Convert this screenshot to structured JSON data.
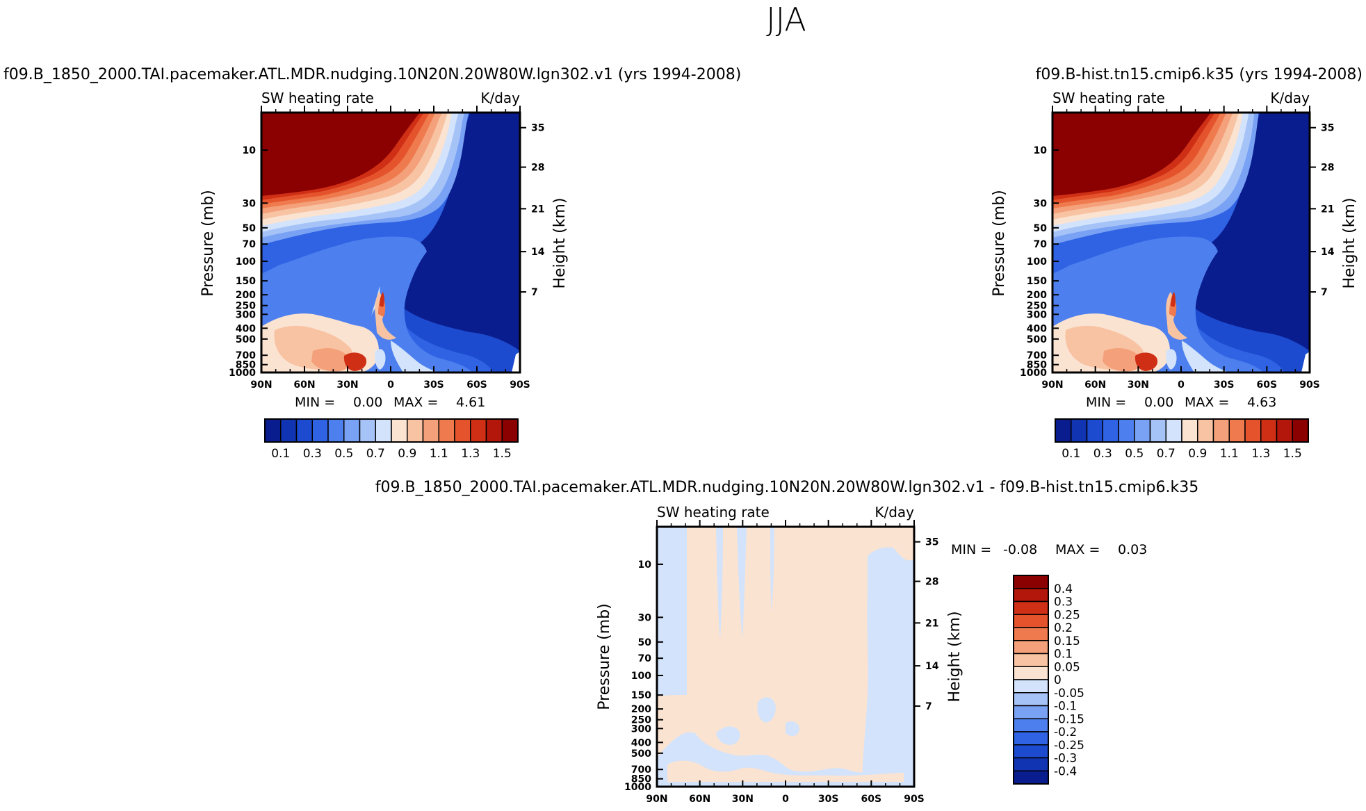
{
  "figure": {
    "title": "JJA"
  },
  "chart_data": [
    {
      "type": "heatmap",
      "panel": "left",
      "title": "f09.B_1850_2000.TAI.pacemaker.ATL.MDR.nudging.10N20N.20W80W.lgn302.v1 (yrs 1994-2008)",
      "subtitle_left": "SW heating rate",
      "subtitle_right": "K/day",
      "xlabel": "",
      "ylabel": "Pressure (mb)",
      "ylabel_right": "Height (km)",
      "x_ticks": [
        "90N",
        "60N",
        "30N",
        "0",
        "30S",
        "60S",
        "90S"
      ],
      "y_ticks": [
        "10",
        "30",
        "50",
        "70",
        "100",
        "150",
        "200",
        "250",
        "300",
        "400",
        "500",
        "700",
        "850",
        "1000"
      ],
      "y_ticks_right": [
        "35",
        "28",
        "21",
        "14",
        "7"
      ],
      "stats": {
        "min_label": "MIN =",
        "min": "0.00",
        "max_label": "MAX =",
        "max": "4.61"
      },
      "colorbar_labels": [
        "0.1",
        "0.3",
        "0.5",
        "0.7",
        "0.9",
        "1.1",
        "1.3",
        "1.5"
      ],
      "colorbar_colors": [
        "#0a1d8e",
        "#1134b3",
        "#1c4bd0",
        "#2f63e4",
        "#4d80ee",
        "#7aa2f4",
        "#a6c3f8",
        "#d2e3fb",
        "#fbe3d2",
        "#f8c3a3",
        "#f4a07a",
        "#ee7a4d",
        "#e4532c",
        "#cf2f15",
        "#b3160a",
        "#8b0000"
      ],
      "min": 0.0,
      "max": 4.61
    },
    {
      "type": "heatmap",
      "panel": "right",
      "title": "f09.B-hist.tn15.cmip6.k35 (yrs 1994-2008)",
      "subtitle_left": "SW heating rate",
      "subtitle_right": "K/day",
      "xlabel": "",
      "ylabel": "Pressure (mb)",
      "ylabel_right": "Height (km)",
      "x_ticks": [
        "90N",
        "60N",
        "30N",
        "0",
        "30S",
        "60S",
        "90S"
      ],
      "y_ticks": [
        "10",
        "30",
        "50",
        "70",
        "100",
        "150",
        "200",
        "250",
        "300",
        "400",
        "500",
        "700",
        "850",
        "1000"
      ],
      "y_ticks_right": [
        "35",
        "28",
        "21",
        "14",
        "7"
      ],
      "stats": {
        "min_label": "MIN =",
        "min": "0.00",
        "max_label": "MAX =",
        "max": "4.63"
      },
      "colorbar_labels": [
        "0.1",
        "0.3",
        "0.5",
        "0.7",
        "0.9",
        "1.1",
        "1.3",
        "1.5"
      ],
      "colorbar_colors": [
        "#0a1d8e",
        "#1134b3",
        "#1c4bd0",
        "#2f63e4",
        "#4d80ee",
        "#7aa2f4",
        "#a6c3f8",
        "#d2e3fb",
        "#fbe3d2",
        "#f8c3a3",
        "#f4a07a",
        "#ee7a4d",
        "#e4532c",
        "#cf2f15",
        "#b3160a",
        "#8b0000"
      ],
      "min": 0.0,
      "max": 4.63
    },
    {
      "type": "heatmap",
      "panel": "difference",
      "title": "f09.B_1850_2000.TAI.pacemaker.ATL.MDR.nudging.10N20N.20W80W.lgn302.v1 - f09.B-hist.tn15.cmip6.k35",
      "subtitle_left": "SW heating rate",
      "subtitle_right": "K/day",
      "xlabel": "",
      "ylabel": "Pressure (mb)",
      "ylabel_right": "Height (km)",
      "x_ticks": [
        "90N",
        "60N",
        "30N",
        "0",
        "30S",
        "60S",
        "90S"
      ],
      "y_ticks": [
        "10",
        "30",
        "50",
        "70",
        "100",
        "150",
        "200",
        "250",
        "300",
        "400",
        "500",
        "700",
        "850",
        "1000"
      ],
      "y_ticks_right": [
        "35",
        "28",
        "21",
        "14",
        "7"
      ],
      "stats": {
        "min_label": "MIN =",
        "min": "-0.08",
        "max_label": "MAX =",
        "max": "0.03"
      },
      "colorbar_labels": [
        "0.4",
        "0.3",
        "0.25",
        "0.2",
        "0.15",
        "0.1",
        "0.05",
        "0",
        "-0.05",
        "-0.1",
        "-0.15",
        "-0.2",
        "-0.25",
        "-0.3",
        "-0.4"
      ],
      "colorbar_colors": [
        "#8b0000",
        "#b3160a",
        "#cf2f15",
        "#e4532c",
        "#ee7a4d",
        "#f4a07a",
        "#f8c3a3",
        "#fbe3d2",
        "#d2e3fb",
        "#a6c3f8",
        "#7aa2f4",
        "#4d80ee",
        "#2f63e4",
        "#1c4bd0",
        "#1134b3",
        "#0a1d8e"
      ],
      "min": -0.08,
      "max": 0.03
    }
  ]
}
